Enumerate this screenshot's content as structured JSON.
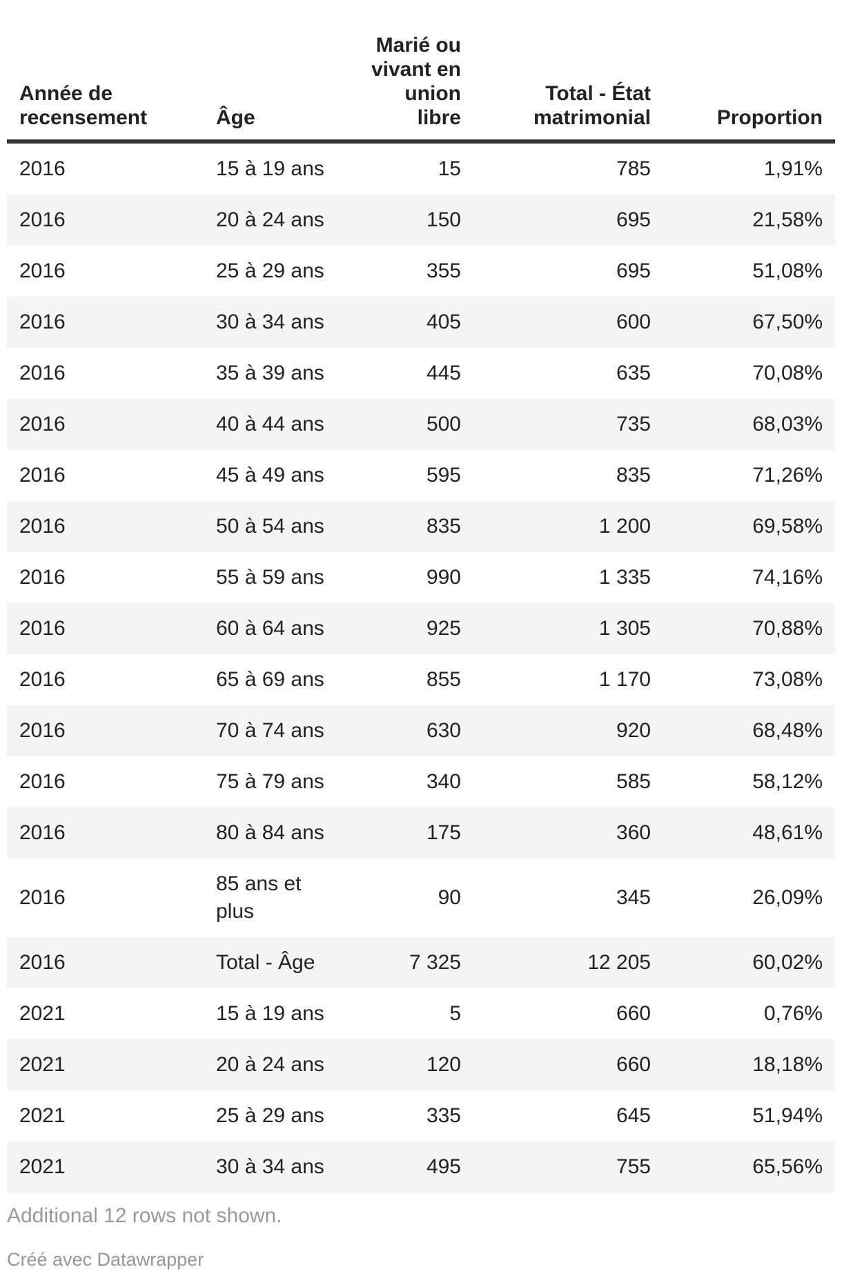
{
  "chart_data": {
    "type": "table",
    "columns": [
      {
        "label": "Année de\nrecensement",
        "align": "left"
      },
      {
        "label": "Âge",
        "align": "left"
      },
      {
        "label": "Marié ou\nvivant en\nunion\nlibre",
        "align": "right"
      },
      {
        "label": "Total - État\nmatrimonial",
        "align": "right"
      },
      {
        "label": "Proportion",
        "align": "right"
      }
    ],
    "rows": [
      [
        "2016",
        "15 à 19 ans",
        "15",
        "785",
        "1,91%"
      ],
      [
        "2016",
        "20 à 24 ans",
        "150",
        "695",
        "21,58%"
      ],
      [
        "2016",
        "25 à 29 ans",
        "355",
        "695",
        "51,08%"
      ],
      [
        "2016",
        "30 à 34 ans",
        "405",
        "600",
        "67,50%"
      ],
      [
        "2016",
        "35 à 39 ans",
        "445",
        "635",
        "70,08%"
      ],
      [
        "2016",
        "40 à 44 ans",
        "500",
        "735",
        "68,03%"
      ],
      [
        "2016",
        "45 à 49 ans",
        "595",
        "835",
        "71,26%"
      ],
      [
        "2016",
        "50 à 54 ans",
        "835",
        "1 200",
        "69,58%"
      ],
      [
        "2016",
        "55 à 59 ans",
        "990",
        "1 335",
        "74,16%"
      ],
      [
        "2016",
        "60 à 64 ans",
        "925",
        "1 305",
        "70,88%"
      ],
      [
        "2016",
        "65 à 69 ans",
        "855",
        "1 170",
        "73,08%"
      ],
      [
        "2016",
        "70 à 74 ans",
        "630",
        "920",
        "68,48%"
      ],
      [
        "2016",
        "75 à 79 ans",
        "340",
        "585",
        "58,12%"
      ],
      [
        "2016",
        "80 à 84 ans",
        "175",
        "360",
        "48,61%"
      ],
      [
        "2016",
        "85 ans et\nplus",
        "90",
        "345",
        "26,09%"
      ],
      [
        "2016",
        "Total - Âge",
        "7 325",
        "12 205",
        "60,02%"
      ],
      [
        "2021",
        "15 à 19 ans",
        "5",
        "660",
        "0,76%"
      ],
      [
        "2021",
        "20 à 24 ans",
        "120",
        "660",
        "18,18%"
      ],
      [
        "2021",
        "25 à 29 ans",
        "335",
        "645",
        "51,94%"
      ],
      [
        "2021",
        "30 à 34 ans",
        "495",
        "755",
        "65,56%"
      ]
    ],
    "note": "Additional 12 rows not shown.",
    "attribution": "Créé avec Datawrapper",
    "layout_hints": {
      "striped_rows": true,
      "header_rule": true
    }
  },
  "colors": {
    "text": "#222222",
    "rule": "#333333",
    "stripe": "#f4f4f4",
    "muted": "#999999",
    "attribution": "#979797",
    "page_bg": "#ffffff"
  }
}
